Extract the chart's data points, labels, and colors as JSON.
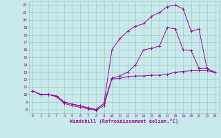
{
  "xlabel": "Windchill (Refroidissement éolien,°C)",
  "bg_color": "#c8eaea",
  "grid_color": "#a0c8c8",
  "line_color": "#990099",
  "xlim": [
    -0.5,
    23.5
  ],
  "ylim": [
    7.5,
    22.5
  ],
  "xticks": [
    0,
    1,
    2,
    3,
    4,
    5,
    6,
    7,
    8,
    9,
    10,
    11,
    12,
    13,
    14,
    15,
    16,
    17,
    18,
    19,
    20,
    21,
    22,
    23
  ],
  "yticks": [
    8,
    9,
    10,
    11,
    12,
    13,
    14,
    15,
    16,
    17,
    18,
    19,
    20,
    21,
    22
  ],
  "line1_x": [
    0,
    1,
    2,
    3,
    4,
    5,
    6,
    7,
    8,
    9,
    10,
    11,
    12,
    13,
    14,
    15,
    16,
    17,
    18,
    19,
    20,
    21,
    22,
    23
  ],
  "line1_y": [
    10.5,
    10.0,
    10.0,
    9.7,
    8.8,
    8.5,
    8.3,
    8.1,
    7.9,
    8.5,
    12.1,
    12.2,
    12.4,
    12.5,
    12.5,
    12.6,
    12.6,
    12.7,
    13.0,
    13.1,
    13.2,
    13.2,
    13.2,
    13.0
  ],
  "line2_x": [
    0,
    1,
    2,
    3,
    4,
    5,
    6,
    7,
    8,
    9,
    10,
    11,
    12,
    13,
    14,
    15,
    16,
    17,
    18,
    19,
    20,
    21,
    22,
    23
  ],
  "line2_y": [
    10.5,
    10.0,
    10.0,
    9.8,
    9.0,
    8.7,
    8.5,
    8.2,
    8.0,
    8.8,
    12.2,
    12.5,
    13.0,
    14.0,
    16.0,
    16.2,
    16.5,
    19.0,
    18.8,
    16.0,
    15.9,
    13.5,
    13.5,
    13.0
  ],
  "line3_x": [
    0,
    1,
    2,
    3,
    4,
    5,
    6,
    7,
    8,
    9,
    10,
    11,
    12,
    13,
    14,
    15,
    16,
    17,
    18,
    19,
    20,
    21,
    22,
    23
  ],
  "line3_y": [
    10.5,
    10.0,
    10.0,
    9.8,
    9.0,
    8.7,
    8.5,
    8.2,
    8.0,
    8.8,
    16.0,
    17.5,
    18.5,
    19.2,
    19.5,
    20.5,
    21.0,
    21.8,
    22.0,
    21.5,
    18.5,
    18.8,
    13.5,
    13.0
  ]
}
